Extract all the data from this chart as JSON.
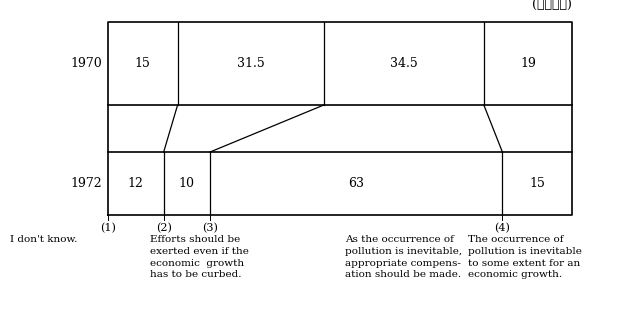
{
  "years": [
    "1970",
    "1972"
  ],
  "values_1970": [
    15,
    31.5,
    34.5,
    19
  ],
  "values_1972": [
    12,
    10,
    63,
    15
  ],
  "unit_label": "(単位：％)",
  "col_labels": [
    "(1)",
    "(2)",
    "(3)",
    "(4)"
  ],
  "legend_texts": [
    "I don't know.",
    "Efforts should be\nexerted even if the\neconomic  growth\nhas to be curbed.",
    "As the occurrence of\npollution is inevitable,\nappropriate compens-\nation should be made.",
    "The occurrence of\npollution is inevitable\nto some extent for an\neconomic growth."
  ],
  "line_color": "#000000",
  "bg_color": "#ffffff",
  "text_color": "#000000",
  "fontsize_values": 9,
  "fontsize_year": 9,
  "fontsize_labels": 8,
  "fontsize_unit": 9,
  "fontsize_legend": 7.5
}
